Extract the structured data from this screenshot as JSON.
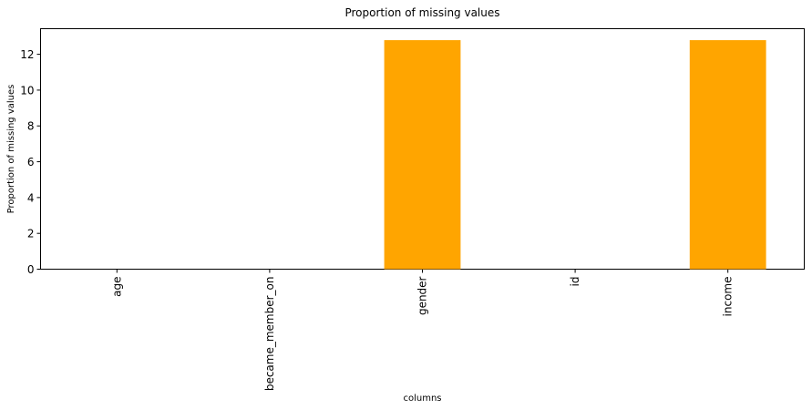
{
  "chart_data": {
    "type": "bar",
    "title": "Proportion of missing values",
    "xlabel": "columns",
    "ylabel": "Proportion of missing values",
    "categories": [
      "age",
      "became_member_on",
      "gender",
      "id",
      "income"
    ],
    "values": [
      0,
      0,
      12.79,
      0,
      12.79
    ],
    "ylim": [
      0,
      13.43
    ],
    "yticks": [
      0,
      2,
      4,
      6,
      8,
      10,
      12
    ],
    "ytick_labels": [
      "0",
      "2",
      "4",
      "6",
      "8",
      "10",
      "12"
    ],
    "bar_color": "#FFA500",
    "grid": false,
    "legend": "none"
  }
}
